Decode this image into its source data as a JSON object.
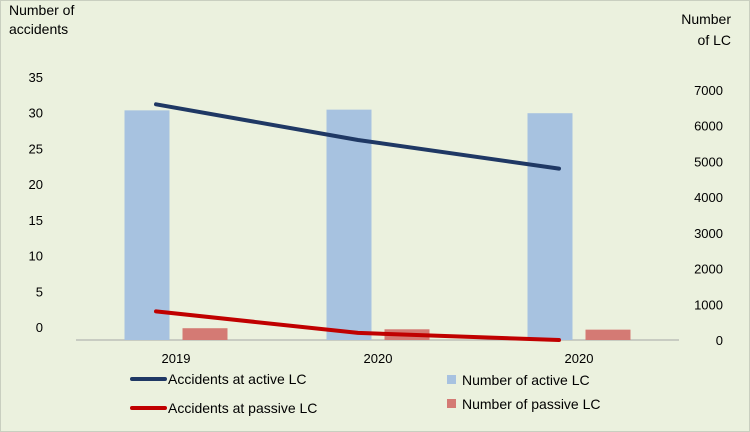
{
  "chart_data": {
    "type": "bar+line",
    "categories": [
      "2019",
      "2020",
      "2020"
    ],
    "y_left": {
      "label_line1": "Number of",
      "label_line2": "accidents",
      "ylim": [
        0,
        35
      ],
      "ticks": [
        "0",
        "5",
        "10",
        "15",
        "20",
        "25",
        "30",
        "35"
      ]
    },
    "y_right": {
      "label_line1": "Number",
      "label_line2": "of LC",
      "ylim": [
        0,
        7000
      ],
      "ticks": [
        "0",
        "1000",
        "2000",
        "3000",
        "4000",
        "5000",
        "6000",
        "7000"
      ]
    },
    "bars": [
      {
        "name": "Number of active LC",
        "axis": "right",
        "color": "#a7c2e0",
        "values": [
          6430,
          6450,
          6350
        ]
      },
      {
        "name": "Number of passive LC",
        "axis": "right",
        "color": "#d47a74",
        "values": [
          330,
          300,
          290
        ]
      }
    ],
    "lines": [
      {
        "name": "Accidents at active LC",
        "axis": "left",
        "color": "#1f3864",
        "values": [
          33,
          28,
          24
        ]
      },
      {
        "name": "Accidents at passive LC",
        "axis": "left",
        "color": "#c00000",
        "values": [
          4,
          1,
          0
        ]
      }
    ],
    "legend_position": "bottom",
    "grid": false
  }
}
